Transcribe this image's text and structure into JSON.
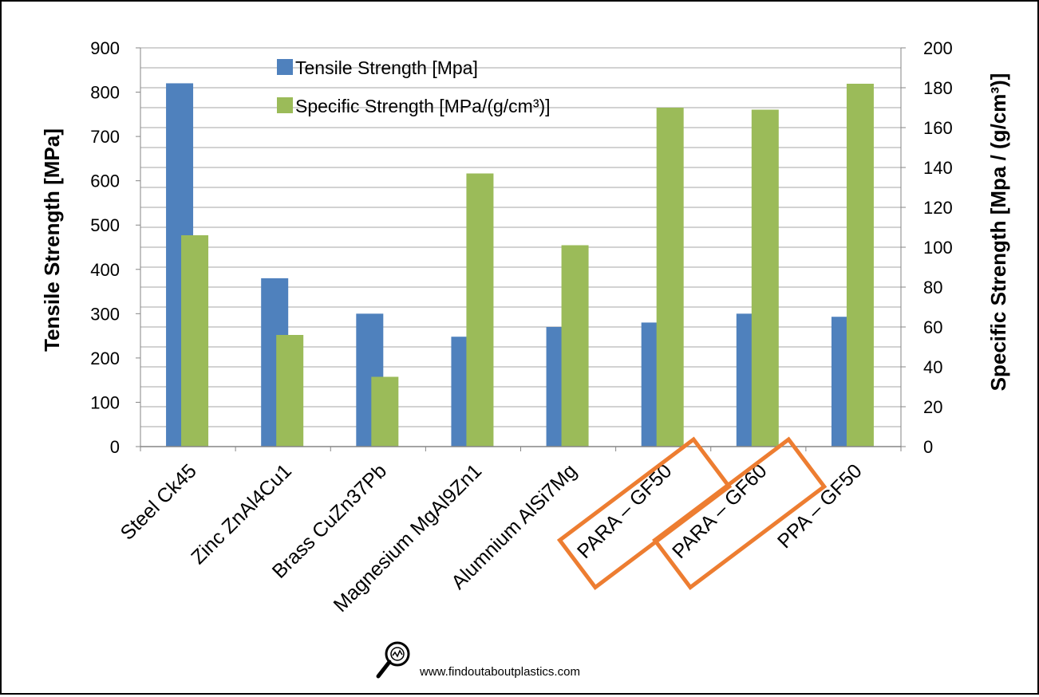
{
  "chart_data": {
    "type": "bar",
    "categories": [
      "Steel Ck45",
      "Zinc ZnAl4Cu1",
      "Brass CuZn37Pb",
      "Magnesium MgAl9Zn1",
      "Alumnium AlSi7Mg",
      "PARA – GF50",
      "PARA – GF60",
      "PPA – GF50"
    ],
    "series": [
      {
        "name": "Tensile Strength [Mpa]",
        "axis": "left",
        "color": "#4f81bd",
        "values": [
          820,
          380,
          300,
          248,
          270,
          280,
          300,
          293
        ]
      },
      {
        "name": "Specific Strength [MPa/(g/cm³)]",
        "axis": "right",
        "color": "#9bbb59",
        "values": [
          106,
          56,
          35,
          137,
          101,
          170,
          169,
          182
        ]
      }
    ],
    "ylabel": "Tensile Strength  [MPa]",
    "y2label": "Specific Strength [Mpa / (g/cm³)]",
    "ylim": [
      0,
      900
    ],
    "y2lim": [
      0,
      200
    ],
    "yticks": [
      "0",
      "100",
      "200",
      "300",
      "400",
      "500",
      "600",
      "700",
      "800",
      "900"
    ],
    "y2ticks": [
      "0",
      "20",
      "40",
      "60",
      "80",
      "100",
      "120",
      "140",
      "160",
      "180",
      "200"
    ],
    "grid": true,
    "legend_position": "top-left",
    "highlighted_categories": [
      "PARA – GF50",
      "PARA – GF60"
    ],
    "highlight_color": "#ed7d31"
  },
  "footer": {
    "url": "www.findoutaboutplastics.com",
    "logo_icon": "magnifier-logo-icon"
  }
}
